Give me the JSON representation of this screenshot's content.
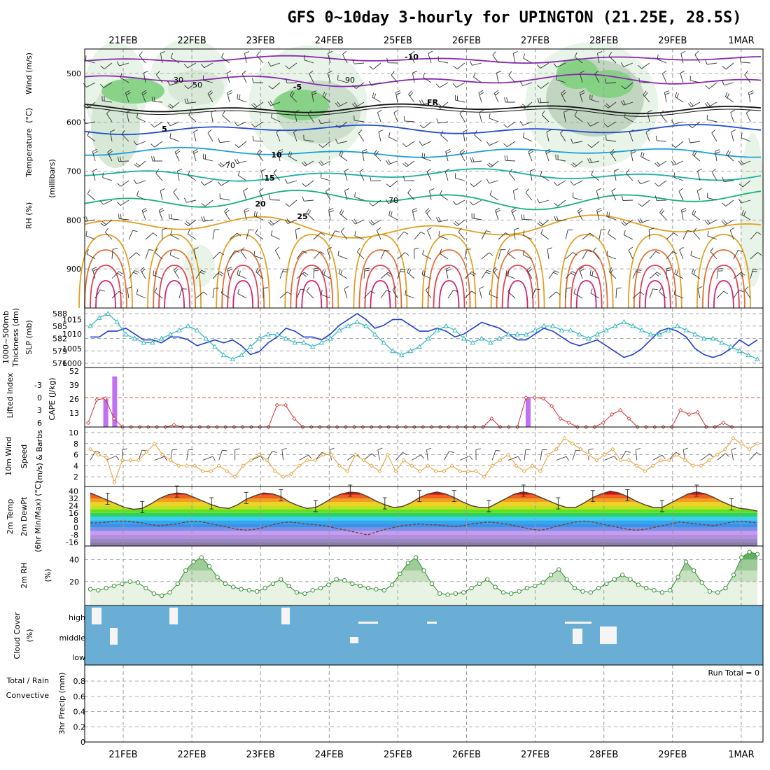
{
  "title": "GFS 0~10day 3-hourly for UPINGTON (21.25E, 28.5S)",
  "date_labels": [
    "21FEB",
    "22FEB",
    "23FEB",
    "24FEB",
    "25FEB",
    "26FEB",
    "27FEB",
    "28FEB",
    "29FEB",
    "1MAR"
  ],
  "panel_labels": {
    "upper": [
      {
        "text": "RH (%)",
        "color": "#2e9e3b"
      },
      {
        "text": "Temperature",
        "color": "#e04030"
      },
      {
        "text": "(°C)",
        "color": "#7a2fa0"
      },
      {
        "text": "Wind (m/s)",
        "color": "#000000"
      },
      {
        "text": "(millibars)",
        "color": "#000000"
      }
    ],
    "thickness": [
      {
        "text": "1000~500mb",
        "color": "#2bb5c0"
      },
      {
        "text": "Thickness (dm)",
        "color": "#2bb5c0"
      },
      {
        "text": "SLP (mb)",
        "color": "#2040d0"
      }
    ],
    "cape": [
      {
        "text": "Lifted Index",
        "color": "#d03030"
      },
      {
        "text": "CAPE (J/kg)",
        "color": "#c070f0"
      }
    ],
    "wind": [
      {
        "text": "10m Wind",
        "color": "#e08020"
      },
      {
        "text": "Speed",
        "color": "#e08020"
      },
      {
        "text": "(m/s) & Barbs",
        "color": "#000000"
      }
    ],
    "temp2m": [
      {
        "text": "2m Temp",
        "color": "#d03030"
      },
      {
        "text": "2m DewPt",
        "color": "#704030"
      },
      {
        "text": "(6hr Min/Max) (°C)",
        "color": "#000000"
      }
    ],
    "rh2m": [
      {
        "text": "2m RH",
        "color": "#2e9e3b"
      },
      {
        "text": "(%)",
        "color": "#000000"
      }
    ],
    "cloud": [
      {
        "text": "Cloud Cover",
        "color": "#2bb5c0"
      },
      {
        "text": "(%)",
        "color": "#000000"
      }
    ],
    "precip": [
      {
        "text": "Total / Rain",
        "color": "#2e9e3b"
      },
      {
        "text": "Convective",
        "color": "#d03030"
      },
      {
        "text": "3hr Precip (mm)",
        "color": "#000000"
      }
    ]
  },
  "run_total": "Run Total = 0",
  "cloud_levels": [
    "high",
    "middle",
    "low"
  ],
  "colors": {
    "slp": "#1f3fd0",
    "thickness": "#2bb5c0",
    "lifted_index": "#d03030",
    "cape_bar": "#c070f0",
    "wind_speed": "#e89a30",
    "barb": "#444444",
    "rh2m": "#2e8b2e",
    "cloud_bg": "#6aaed6",
    "dewpt": "#7a4030",
    "temp_line": "#5a3a2a"
  },
  "chart_data": [
    {
      "type": "heatmap",
      "panel": "upper-air cross section",
      "ylabel": "(millibars)",
      "y_ticks": [
        500,
        600,
        700,
        800,
        900
      ],
      "ylim": [
        1000,
        450
      ],
      "temperature_contours": [
        {
          "label": "-10",
          "color": "#8a2ab0"
        },
        {
          "label": "-5",
          "color": "#8a2ab0"
        },
        {
          "label": "FR",
          "color": "#000000"
        },
        {
          "label": "5",
          "color": "#1f4fd0"
        },
        {
          "label": "10",
          "color": "#1e9fd8"
        },
        {
          "label": "15",
          "color": "#18b0a0"
        },
        {
          "label": "20",
          "color": "#18b080"
        },
        {
          "label": "25",
          "color": "#e0a020"
        }
      ],
      "rh_contour_labels": [
        "30",
        "50",
        "70",
        "70",
        "90"
      ]
    },
    {
      "type": "line",
      "panel": "thickness / SLP",
      "ylabel_left": "1000~500mb Thickness (dm)",
      "ylabel_right": "SLP (mb)",
      "y_ticks_thickness": [
        576,
        579,
        582,
        585,
        588
      ],
      "y_ticks_slp": [
        1000,
        1005,
        1010,
        1015
      ],
      "series": [
        {
          "name": "SLP",
          "values": [
            1009,
            1009,
            1011,
            1011,
            1012,
            1010,
            1008,
            1008,
            1007,
            1009,
            1009,
            1008,
            1006,
            1007,
            1008,
            1007,
            1008,
            1006,
            1003,
            1004,
            1007,
            1009,
            1012,
            1011,
            1009,
            1009,
            1008,
            1010,
            1013,
            1015,
            1017,
            1015,
            1012,
            1013,
            1015,
            1015,
            1013,
            1011,
            1011,
            1012,
            1011,
            1009,
            1010,
            1012,
            1014,
            1013,
            1012,
            1010,
            1008,
            1008,
            1010,
            1012,
            1011,
            1009,
            1007,
            1006,
            1007,
            1008,
            1006,
            1004,
            1002,
            1003,
            1005,
            1008,
            1011,
            1012,
            1011,
            1009,
            1005,
            1003,
            1002,
            1003,
            1005,
            1008,
            1006,
            1008
          ]
        },
        {
          "name": "Thickness",
          "values": [
            585,
            587,
            588,
            586,
            583,
            582,
            581,
            581,
            582,
            583,
            584,
            585,
            584,
            582,
            580,
            578,
            577,
            578,
            580,
            582,
            583,
            583,
            582,
            581,
            581,
            580,
            581,
            582,
            584,
            585,
            586,
            585,
            583,
            581,
            579,
            578,
            579,
            580,
            582,
            584,
            585,
            584,
            582,
            581,
            582,
            581,
            582,
            583,
            583,
            583,
            584,
            585,
            585,
            584,
            584,
            583,
            582,
            583,
            584,
            585,
            586,
            585,
            584,
            583,
            583,
            584,
            585,
            584,
            583,
            582,
            582,
            581,
            580,
            579,
            578,
            577
          ]
        }
      ]
    },
    {
      "type": "bar",
      "panel": "CAPE / Lifted Index",
      "y_ticks_li": [
        "-3",
        "0",
        "3",
        "6"
      ],
      "y_ticks_cape": [
        13,
        26,
        39,
        52
      ],
      "series": [
        {
          "name": "CAPE (J/kg)",
          "bars": [
            {
              "day": 0.2,
              "value": 26
            },
            {
              "day": 0.33,
              "value": 47
            },
            {
              "day": 6.35,
              "value": 27
            }
          ]
        },
        {
          "name": "Lifted Index",
          "x": [
            0,
            0.125,
            0.25,
            0.375,
            0.5,
            0.625,
            0.75,
            0.875,
            1,
            1.125,
            1.25,
            1.375,
            1.5,
            1.625,
            1.75,
            1.875,
            2,
            2.125,
            2.25,
            2.375,
            2.5,
            2.625,
            2.75,
            2.875,
            3,
            3.125,
            3.25,
            3.375,
            3.5,
            3.625,
            3.75,
            3.875,
            4,
            4.125,
            4.25,
            4.375,
            4.5,
            4.625,
            4.75,
            4.875,
            5,
            5.125,
            5.25,
            5.375,
            5.5,
            5.625,
            5.75,
            5.875,
            6,
            6.125,
            6.25,
            6.375,
            6.5,
            6.625,
            6.75,
            6.875,
            7,
            7.125,
            7.25,
            7.375,
            7.5,
            7.625,
            7.75,
            7.875,
            8,
            8.125,
            8.25,
            8.375,
            8.5,
            8.625,
            8.75,
            8.875,
            9,
            9.125,
            9.25,
            9.375
          ],
          "values": [
            6,
            0.5,
            0.2,
            5,
            7,
            8,
            8,
            8,
            8,
            8,
            6.5,
            7,
            8,
            8,
            8,
            8,
            8,
            8,
            8,
            8,
            8,
            7,
            1.8,
            1.8,
            5,
            8,
            8,
            8,
            8,
            8,
            8,
            8,
            8,
            8,
            8,
            8,
            8,
            8,
            8,
            8,
            8,
            8,
            8,
            8,
            8,
            8,
            7,
            5,
            7,
            8,
            8,
            0,
            0,
            0.2,
            2,
            5,
            6,
            7,
            8,
            7,
            6,
            4,
            3,
            5,
            8,
            8,
            8,
            8,
            8,
            3,
            4,
            3.5,
            8,
            8,
            6,
            8
          ]
        }
      ]
    },
    {
      "type": "line",
      "panel": "10m wind speed",
      "ylabel": "(m/s)",
      "y_ticks": [
        2,
        4,
        6,
        8,
        10
      ],
      "series": [
        {
          "name": "Wind Speed",
          "values": [
            7,
            6,
            5.5,
            1,
            5,
            5,
            5,
            6.5,
            8,
            6,
            5,
            4,
            4,
            4,
            3,
            3,
            4,
            3,
            2,
            4,
            5,
            6,
            5,
            3,
            2,
            2.5,
            4,
            5,
            5,
            6,
            6,
            4,
            3,
            6,
            5,
            4,
            3,
            6,
            3,
            5,
            4,
            3,
            4,
            3,
            3,
            4,
            3,
            3,
            3,
            2,
            4,
            5,
            6,
            4,
            3,
            4,
            3,
            6,
            7,
            9,
            8,
            7,
            6,
            5,
            6,
            7,
            5,
            5,
            4,
            3,
            4,
            5,
            5,
            6,
            5,
            4,
            4,
            5,
            6,
            7,
            9,
            8,
            7,
            8
          ]
        }
      ]
    },
    {
      "type": "area",
      "panel": "2m temperature / dewpoint",
      "ylabel": "(°C)",
      "y_ticks": [
        -16,
        -8,
        0,
        8,
        16,
        24,
        32,
        40
      ],
      "series": [
        {
          "name": "2m Temp",
          "values": [
            38,
            34,
            30,
            26,
            22,
            20,
            21,
            26,
            32,
            36,
            38,
            37,
            33,
            29,
            25,
            22,
            21,
            25,
            31,
            35,
            38,
            37,
            34,
            28,
            24,
            21,
            22,
            27,
            33,
            37,
            39,
            38,
            34,
            29,
            25,
            22,
            23,
            27,
            33,
            37,
            39,
            37,
            33,
            28,
            24,
            22,
            22,
            27,
            32,
            37,
            39,
            37,
            33,
            29,
            25,
            22,
            22,
            27,
            33,
            37,
            40,
            38,
            34,
            29,
            25,
            22,
            22,
            27,
            32,
            37,
            39,
            37,
            33,
            28,
            24,
            21,
            20,
            18
          ]
        },
        {
          "name": "2m DewPt",
          "values": [
            5,
            5,
            6,
            7,
            7,
            6,
            5,
            3,
            2,
            3,
            4,
            6,
            7,
            6,
            4,
            2,
            0,
            -2,
            -3,
            -2,
            0,
            3,
            5,
            6,
            5,
            4,
            3,
            2,
            0,
            -2,
            -4,
            -6,
            -8,
            -5,
            -2,
            0,
            2,
            3,
            4,
            3,
            3,
            2,
            1,
            2,
            4,
            5,
            6,
            5,
            4,
            2,
            0,
            -2,
            -3,
            -1,
            2,
            4,
            6,
            7,
            6,
            4,
            2,
            0,
            -2,
            -3,
            -2,
            0,
            2,
            4,
            6,
            5,
            4,
            3,
            2,
            4,
            6,
            7,
            6,
            5
          ]
        }
      ]
    },
    {
      "type": "line",
      "panel": "2m relative humidity",
      "ylabel": "(%)",
      "y_ticks": [
        20,
        40
      ],
      "series": [
        {
          "name": "2m RH",
          "values": [
            13,
            12,
            14,
            16,
            18,
            20,
            19,
            14,
            9,
            7,
            10,
            18,
            30,
            38,
            42,
            34,
            24,
            18,
            15,
            13,
            12,
            11,
            14,
            18,
            22,
            16,
            10,
            9,
            12,
            14,
            17,
            22,
            21,
            18,
            16,
            14,
            13,
            12,
            17,
            27,
            37,
            42,
            30,
            18,
            9,
            8,
            9,
            10,
            14,
            18,
            22,
            15,
            10,
            9,
            11,
            14,
            16,
            19,
            26,
            31,
            22,
            14,
            11,
            10,
            14,
            18,
            22,
            26,
            22,
            17,
            14,
            12,
            10,
            12,
            24,
            38,
            30,
            19,
            11,
            10,
            14,
            26,
            42,
            47,
            45
          ]
        }
      ]
    },
    {
      "type": "bar",
      "panel": "cloud cover",
      "categories": [
        "high",
        "middle",
        "low"
      ],
      "note": "mostly clear"
    },
    {
      "type": "bar",
      "panel": "3hr precipitation",
      "ylabel": "3hr Precip (mm)",
      "y_ticks": [
        0,
        0.2,
        0.4,
        0.6,
        0.8
      ],
      "ylim": [
        0,
        1
      ],
      "series": [
        {
          "name": "Total / Rain",
          "values": []
        },
        {
          "name": "Convective",
          "values": []
        }
      ]
    }
  ]
}
